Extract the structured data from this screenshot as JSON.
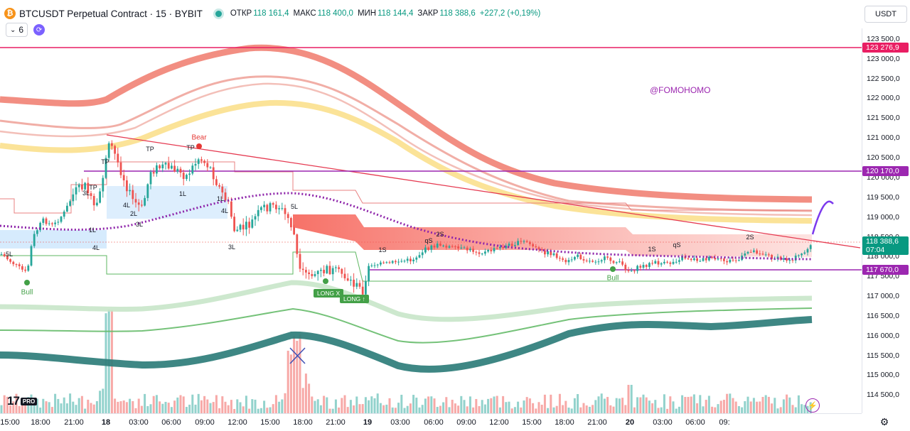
{
  "header": {
    "symbol_title": "BTCUSDT Perpetual Contract · 15 · BYBIT",
    "logo_glyph": "₿",
    "ohlc": [
      {
        "label": "ОТКР",
        "value": "118 161,4"
      },
      {
        "label": "МАКС",
        "value": "118 400,0"
      },
      {
        "label": "МИН",
        "value": "118 144,4"
      },
      {
        "label": "ЗАКР",
        "value": "118 388,6"
      }
    ],
    "change": "+227,2 (+0,19%)",
    "indicator_count": "6",
    "currency": "USDT"
  },
  "price_scale": {
    "ticks": [
      "123 500,0",
      "123 000,0",
      "122 500,0",
      "122 000,0",
      "121 500,0",
      "121 000,0",
      "120 500,0",
      "120 000,0",
      "119 500,0",
      "119 000,0",
      "118 500,0",
      "118 000,0",
      "117 500,0",
      "117 000,0",
      "116 500,0",
      "116 000,0",
      "115 500,0",
      "115 000,0",
      "114 500,0"
    ],
    "labels": [
      {
        "text": "123 276,9",
        "color": "#e91e63"
      },
      {
        "text": "120 170,0",
        "color": "#9c27b0"
      },
      {
        "text": "118 388,6",
        "color": "#089981"
      },
      {
        "text": "07:04",
        "color": "#089981"
      },
      {
        "text": "117 670,0",
        "color": "#9c27b0"
      }
    ]
  },
  "time_axis": {
    "ticks": [
      "15:00",
      "18:00",
      "21:00",
      "18",
      "03:00",
      "06:00",
      "09:00",
      "12:00",
      "15:00",
      "18:00",
      "21:00",
      "19",
      "03:00",
      "06:00",
      "09:00",
      "12:00",
      "15:00",
      "18:00",
      "21:00",
      "20",
      "03:00",
      "06:00",
      "09:"
    ],
    "bold": [
      "18",
      "19",
      "20"
    ]
  },
  "annotations": {
    "watermark": "@FOMOHOMO",
    "bull_1": "Bull",
    "bull_2": "Bull",
    "bear": "Bear",
    "long_x": "LONG X",
    "long": "LONG ↑",
    "tp": [
      "TP",
      "TP",
      "TP",
      "TP"
    ],
    "levels": [
      "5L",
      "1L",
      "4L",
      "2L",
      "3L",
      "1L",
      "1L",
      "4L",
      "3L",
      "5L",
      "4L",
      "3L",
      "1S",
      "qS",
      "2S",
      "1S",
      "qS",
      "2S"
    ]
  },
  "branding": {
    "tv_mark": "17",
    "tv_pro": "PRO"
  },
  "icons": {
    "flash": "flash-icon",
    "settings": "gear-icon",
    "sync": "sync-icon"
  },
  "chart_data": {
    "type": "candlestick",
    "symbol": "BTCUSDT",
    "interval": "15",
    "exchange": "BYBIT",
    "ylim": [
      114300,
      123700
    ],
    "horizontal_levels": [
      123276.9,
      120170.0,
      117670.0
    ],
    "last_price": 118388.6,
    "open": 118161.4,
    "high": 118400.0,
    "low": 118144.4,
    "close": 118388.6
  }
}
